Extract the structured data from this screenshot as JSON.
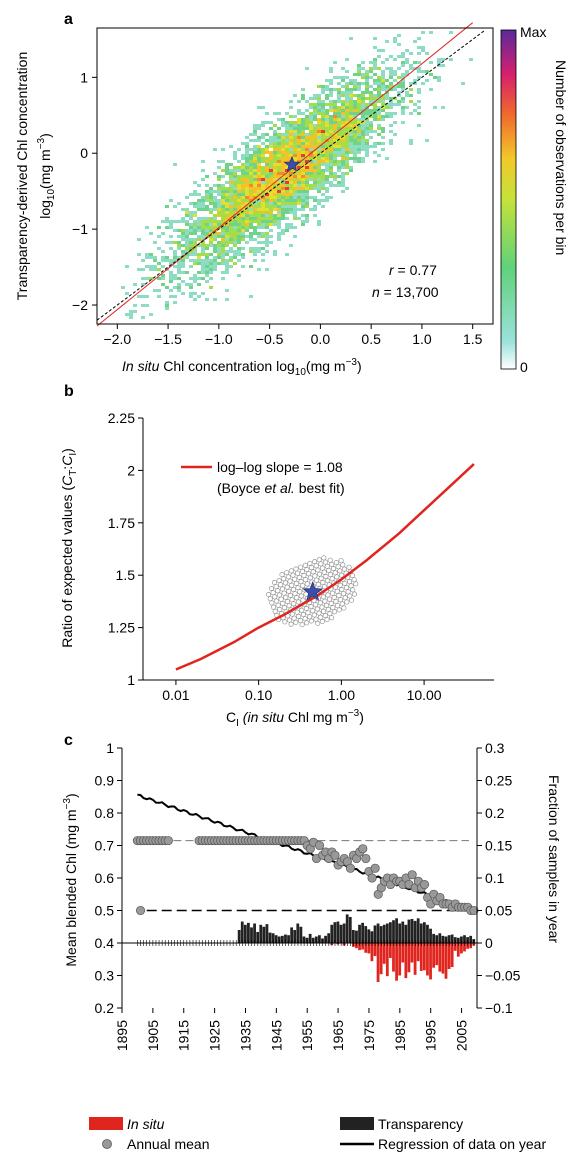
{
  "chart_data": [
    {
      "panel": "a",
      "type": "heatmap",
      "ylabel_line1": "Transparency-derived Chl concentration",
      "ylabel_line2_base": "log",
      "ylabel_line2_sub": "10",
      "ylabel_line2_unit": "(mg m",
      "ylabel_line2_exp": "−3",
      "ylabel_line2_close": ")",
      "xlabel_italic": "In situ",
      "xlabel_rest": " Chl concentration log",
      "xlabel_sub": "10",
      "xlabel_unit": "(mg m",
      "xlabel_exp": "−3",
      "xlabel_close": ")",
      "x_ticks": [
        -2.0,
        -1.5,
        -1.0,
        -0.5,
        0.0,
        0.5,
        1.0,
        1.5
      ],
      "x_tick_labels": [
        "−2.0",
        "−1.5",
        "−1.0",
        "−0.5",
        "0.0",
        "0.5",
        "1.0",
        "1.5"
      ],
      "y_ticks": [
        -2,
        -1,
        0,
        1
      ],
      "y_tick_labels": [
        "−2",
        "−1",
        "0",
        "1"
      ],
      "xlim": [
        -2.2,
        1.7
      ],
      "ylim": [
        -2.25,
        1.65
      ],
      "r_label": "r",
      "r_value": " = 0.77",
      "n_label": "n",
      "n_value": " = 13,700",
      "fit_line": {
        "slope": 1.08,
        "intercept": 0.1
      },
      "one_to_one_line": {
        "slope": 1,
        "intercept": 0
      },
      "mean_point": {
        "x": -0.28,
        "y": -0.15
      },
      "colorbar": {
        "max_label": "Max",
        "min_label": "0",
        "label": "Number of observations per bin"
      }
    },
    {
      "panel": "b",
      "type": "line",
      "ylabel_prefix": "Ratio of expected values (",
      "ylabel_ct": "C",
      "ylabel_ct_sub": "T",
      "ylabel_colon": ":",
      "ylabel_ci": "C",
      "ylabel_ci_sub": "I",
      "ylabel_suffix": ")",
      "xlabel_prefix": "C",
      "xlabel_sub": "I",
      "xlabel_italic": " (in situ",
      "xlabel_rest": " Chl mg m",
      "xlabel_exp": "−3",
      "xlabel_close": ")",
      "x_scale": "log",
      "x_ticks": [
        0.01,
        0.1,
        1,
        10
      ],
      "x_tick_labels": [
        "0.01",
        "0.10",
        "1.00",
        "10.00"
      ],
      "y_ticks": [
        1,
        1.25,
        1.5,
        1.75,
        2,
        2.25
      ],
      "y_tick_labels": [
        "1",
        "1.25",
        "1.5",
        "1.75",
        "2",
        "2.25"
      ],
      "xlim": [
        0.004,
        70
      ],
      "ylim": [
        1,
        2.25
      ],
      "series": [
        {
          "name": "log–log slope = 1.08",
          "x": [
            0.01,
            0.02,
            0.05,
            0.1,
            0.2,
            0.5,
            1,
            2,
            5,
            10,
            20,
            40
          ],
          "y": [
            1.05,
            1.1,
            1.18,
            1.25,
            1.31,
            1.4,
            1.48,
            1.57,
            1.7,
            1.81,
            1.92,
            2.03
          ]
        }
      ],
      "legend_line1": "log–log slope = 1.08",
      "legend_line2_a": "(Boyce ",
      "legend_line2_b": "et al.",
      "legend_line2_c": " best fit)",
      "mean_point": {
        "x": 0.45,
        "y": 1.42
      }
    },
    {
      "panel": "c",
      "type": "bar",
      "ylabel_left": "Mean blended Chl (mg m",
      "ylabel_left_exp": "−3",
      "ylabel_left_close": ")",
      "ylabel_right": "Fraction of samples in year",
      "y_left_ticks": [
        0.2,
        0.3,
        0.4,
        0.5,
        0.6,
        0.7,
        0.8,
        0.9,
        1
      ],
      "y_left_tick_labels": [
        "0.2",
        "0.3",
        "0.4",
        "0.5",
        "0.6",
        "0.7",
        "0.8",
        "0.9",
        "1"
      ],
      "y_right_ticks": [
        -0.1,
        -0.05,
        0,
        0.05,
        0.1,
        0.15,
        0.2,
        0.25,
        0.3
      ],
      "y_right_tick_labels": [
        "−0.1",
        "−0.05",
        "0",
        "0.05",
        "0.1",
        "0.15",
        "0.2",
        "0.25",
        "0.3"
      ],
      "x_ticks": [
        1895,
        1905,
        1915,
        1925,
        1935,
        1945,
        1955,
        1965,
        1975,
        1985,
        1995,
        2005
      ],
      "xlim": [
        1895,
        2010
      ],
      "ylim_left": [
        0.2,
        1
      ],
      "ylim_right": [
        -0.1,
        0.3
      ],
      "regression": {
        "x": [
          1900,
          2009
        ],
        "y": [
          0.855,
          0.5
        ]
      },
      "dashed_levels": [
        0.715,
        0.5
      ],
      "years_flat": [
        1900,
        1901,
        1902,
        1903,
        1904,
        1905,
        1906,
        1907,
        1908,
        1909,
        1910,
        1920,
        1921,
        1922,
        1923,
        1924,
        1925,
        1926,
        1927,
        1928,
        1929,
        1930,
        1931,
        1932,
        1933,
        1934,
        1935,
        1936,
        1937,
        1938,
        1939,
        1940,
        1941,
        1942,
        1943,
        1944,
        1945,
        1946,
        1947,
        1948,
        1949,
        1950,
        1951,
        1952,
        1953,
        1954
      ],
      "annual_mean_flat": 0.715,
      "annual_mean_tail": {
        "x": [
          1901,
          1955,
          1956,
          1957,
          1958,
          1959,
          1960,
          1961,
          1962,
          1963,
          1964,
          1965,
          1966,
          1967,
          1968,
          1969,
          1970,
          1971,
          1972,
          1973,
          1974,
          1975,
          1976,
          1977,
          1978,
          1979,
          1980,
          1981,
          1982,
          1983,
          1984,
          1985,
          1986,
          1987,
          1988,
          1989,
          1990,
          1991,
          1992,
          1993,
          1994,
          1995,
          1996,
          1997,
          1998,
          1999,
          2000,
          2001,
          2002,
          2003,
          2004,
          2005,
          2006,
          2007,
          2008,
          2009
        ],
        "y": [
          0.5,
          0.7,
          0.69,
          0.71,
          0.66,
          0.7,
          0.67,
          0.68,
          0.66,
          0.68,
          0.67,
          0.64,
          0.65,
          0.66,
          0.65,
          0.63,
          0.67,
          0.66,
          0.68,
          0.69,
          0.66,
          0.62,
          0.6,
          0.63,
          0.55,
          0.57,
          0.59,
          0.6,
          0.58,
          0.6,
          0.59,
          0.59,
          0.58,
          0.6,
          0.58,
          0.61,
          0.57,
          0.59,
          0.57,
          0.58,
          0.54,
          0.52,
          0.55,
          0.53,
          0.54,
          0.52,
          0.52,
          0.52,
          0.51,
          0.52,
          0.51,
          0.51,
          0.51,
          0.51,
          0.5,
          0.5
        ]
      },
      "transparency_bars": {
        "x": [
          1933,
          1934,
          1935,
          1936,
          1937,
          1938,
          1939,
          1940,
          1941,
          1942,
          1943,
          1944,
          1945,
          1946,
          1947,
          1948,
          1949,
          1950,
          1951,
          1952,
          1953,
          1954,
          1955,
          1956,
          1957,
          1958,
          1959,
          1960,
          1961,
          1962,
          1963,
          1964,
          1965,
          1966,
          1967,
          1968,
          1969,
          1970,
          1971,
          1972,
          1973,
          1974,
          1975,
          1976,
          1977,
          1978,
          1979,
          1980,
          1981,
          1982,
          1983,
          1984,
          1985,
          1986,
          1987,
          1988,
          1989,
          1990,
          1991,
          1992,
          1993,
          1994,
          1995,
          1996,
          1997,
          1998,
          1999,
          2000,
          2001,
          2002,
          2003,
          2004,
          2005,
          2006,
          2007,
          2008,
          2009
        ],
        "y": [
          0.02,
          0.033,
          0.028,
          0.031,
          0.024,
          0.03,
          0.017,
          0.028,
          0.025,
          0.029,
          0.016,
          0.015,
          0.012,
          0.01,
          0.011,
          0.013,
          0.012,
          0.024,
          0.02,
          0.03,
          0.025,
          0.01,
          0.008,
          0.014,
          0.008,
          0.01,
          0.012,
          0.007,
          0.011,
          0.015,
          0.028,
          0.032,
          0.033,
          0.028,
          0.03,
          0.044,
          0.04,
          0.02,
          0.019,
          0.028,
          0.031,
          0.026,
          0.021,
          0.018,
          0.027,
          0.03,
          0.026,
          0.028,
          0.03,
          0.032,
          0.035,
          0.038,
          0.03,
          0.033,
          0.028,
          0.036,
          0.037,
          0.034,
          0.038,
          0.03,
          0.032,
          0.028,
          0.022,
          0.014,
          0.012,
          0.015,
          0.011,
          0.01,
          0.012,
          0.013,
          0.009,
          0.008,
          0.01,
          0.012,
          0.009,
          0.011,
          0.006
        ]
      },
      "in_situ_bars": {
        "x": [
          1963,
          1965,
          1967,
          1970,
          1971,
          1972,
          1973,
          1974,
          1975,
          1976,
          1977,
          1978,
          1979,
          1980,
          1981,
          1982,
          1983,
          1984,
          1985,
          1986,
          1987,
          1988,
          1989,
          1990,
          1991,
          1992,
          1993,
          1994,
          1995,
          1996,
          1997,
          1998,
          1999,
          2000,
          2001,
          2002,
          2003,
          2004,
          2005,
          2006,
          2007,
          2008,
          2009
        ],
        "y": [
          -0.003,
          -0.002,
          -0.004,
          -0.006,
          -0.008,
          -0.011,
          -0.01,
          -0.015,
          -0.016,
          -0.028,
          -0.02,
          -0.06,
          -0.048,
          -0.032,
          -0.051,
          -0.023,
          -0.044,
          -0.058,
          -0.05,
          -0.03,
          -0.054,
          -0.045,
          -0.03,
          -0.049,
          -0.028,
          -0.043,
          -0.042,
          -0.05,
          -0.056,
          -0.038,
          -0.034,
          -0.044,
          -0.047,
          -0.055,
          -0.04,
          -0.037,
          -0.012,
          -0.021,
          -0.016,
          -0.013,
          -0.009,
          -0.008,
          -0.004
        ]
      }
    }
  ],
  "legend": {
    "in_situ": "In situ",
    "transparency": "Transparency",
    "annual_mean": "Annual mean",
    "regression": "Regression of data on year"
  },
  "colors": {
    "red": "#e0251f",
    "dark": "#222222",
    "star": "#3a4ea8",
    "grey_dot": "#999999"
  }
}
